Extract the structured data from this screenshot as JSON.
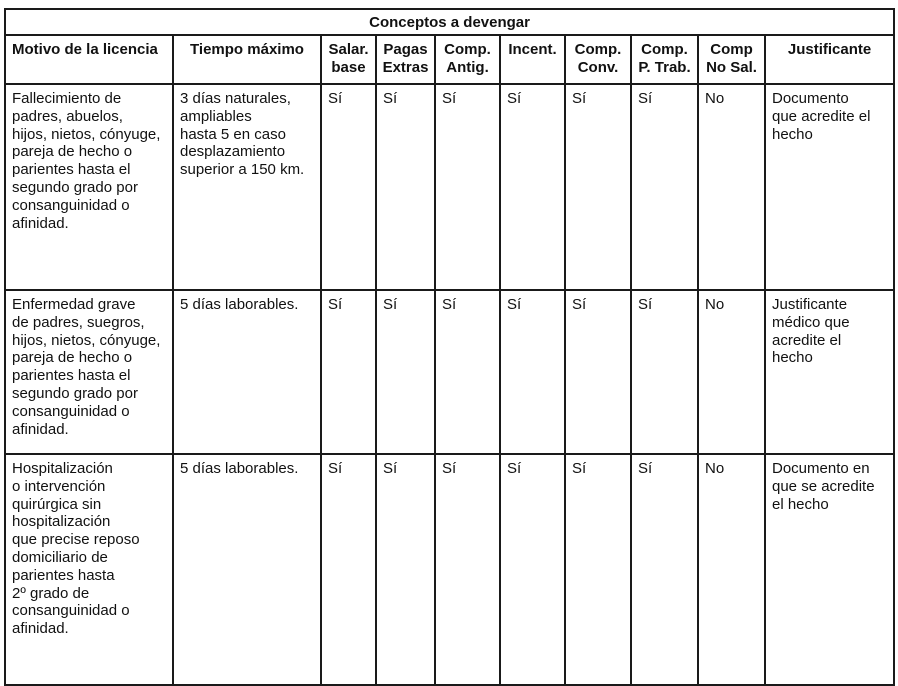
{
  "group_header": "Conceptos a devengar",
  "columns": [
    "Motivo de la licencia",
    "Tiempo máximo",
    "Salar.\nbase",
    "Pagas\nExtras",
    "Comp.\nAntig.",
    "Incent.",
    "Comp.\nConv.",
    "Comp.\nP. Trab.",
    "Comp\nNo Sal.",
    "Justificante"
  ],
  "rows": [
    [
      "Fallecimiento de\npadres, abuelos,\nhijos, nietos, cónyuge,\npareja de hecho o\nparientes hasta el\nsegundo grado por\nconsanguinidad o\nafinidad.",
      "3 días naturales,\nampliables\nhasta 5 en caso\ndesplazamiento\nsuperior a 150 km.",
      "Sí",
      "Sí",
      "Sí",
      "Sí",
      "Sí",
      "Sí",
      "No",
      "Documento\nque acredite el\nhecho"
    ],
    [
      "Enfermedad grave\nde padres, suegros,\nhijos, nietos, cónyuge,\npareja de hecho o\nparientes hasta el\nsegundo grado por\nconsanguinidad o\nafinidad.",
      "5 días laborables.",
      "Sí",
      "Sí",
      "Sí",
      "Sí",
      "Sí",
      "Sí",
      "No",
      "Justificante\nmédico que\nacredite el\nhecho"
    ],
    [
      "Hospitalización\no intervención\nquirúrgica sin\nhospitalización\nque precise reposo\ndomiciliario de\nparientes hasta\n2º grado de\nconsanguinidad o\nafinidad.",
      "5 días laborables.",
      "Sí",
      "Sí",
      "Sí",
      "Sí",
      "Sí",
      "Sí",
      "No",
      "Documento en\nque se acredite\nel hecho"
    ]
  ]
}
